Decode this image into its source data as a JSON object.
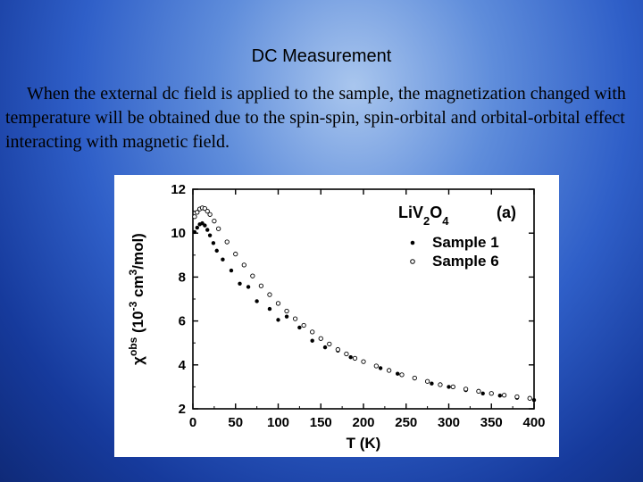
{
  "slide": {
    "title": "DC Measurement",
    "body": "When the external dc field is applied to the sample, the magnetization changed with temperature will be obtained due to the spin-spin, spin-orbital and orbital-orbital effect interacting with magnetic field."
  },
  "chart_data": {
    "type": "scatter",
    "panel_label": "(a)",
    "compound": {
      "base": "LiV",
      "sub1": "2",
      "mid": "O",
      "sub2": "4"
    },
    "xlabel": "T (K)",
    "ylabel": "χ^obs (10^-3 cm^3/mol)",
    "xlim": [
      0,
      400
    ],
    "ylim": [
      2,
      12
    ],
    "x_ticks": [
      "0",
      "50",
      "100",
      "150",
      "200",
      "250",
      "300",
      "350",
      "400"
    ],
    "y_ticks": [
      "2",
      "4",
      "6",
      "8",
      "10",
      "12"
    ],
    "legend_position": "top-right",
    "grid": false,
    "series": [
      {
        "name": "Sample 1",
        "marker": "filled-dot",
        "color": "#000000",
        "points": [
          [
            2,
            10.05
          ],
          [
            5,
            10.25
          ],
          [
            8,
            10.4
          ],
          [
            11,
            10.45
          ],
          [
            14,
            10.35
          ],
          [
            17,
            10.15
          ],
          [
            20,
            9.9
          ],
          [
            24,
            9.55
          ],
          [
            28,
            9.2
          ],
          [
            35,
            8.8
          ],
          [
            45,
            8.3
          ],
          [
            55,
            7.7
          ],
          [
            65,
            7.55
          ],
          [
            75,
            6.9
          ],
          [
            90,
            6.55
          ],
          [
            100,
            6.05
          ],
          [
            110,
            6.2
          ],
          [
            125,
            5.7
          ],
          [
            140,
            5.1
          ],
          [
            155,
            4.8
          ],
          [
            170,
            4.65
          ],
          [
            185,
            4.35
          ],
          [
            200,
            4.15
          ],
          [
            220,
            3.85
          ],
          [
            240,
            3.6
          ],
          [
            260,
            3.4
          ],
          [
            280,
            3.15
          ],
          [
            300,
            3.0
          ],
          [
            320,
            2.85
          ],
          [
            340,
            2.7
          ],
          [
            360,
            2.6
          ],
          [
            380,
            2.5
          ],
          [
            400,
            2.4
          ]
        ]
      },
      {
        "name": "Sample 6",
        "marker": "open-dot",
        "color": "#000000",
        "points": [
          [
            2,
            10.75
          ],
          [
            5,
            10.95
          ],
          [
            8,
            11.1
          ],
          [
            11,
            11.15
          ],
          [
            14,
            11.12
          ],
          [
            17,
            11.0
          ],
          [
            20,
            10.85
          ],
          [
            25,
            10.55
          ],
          [
            30,
            10.2
          ],
          [
            40,
            9.6
          ],
          [
            50,
            9.05
          ],
          [
            60,
            8.55
          ],
          [
            70,
            8.05
          ],
          [
            80,
            7.6
          ],
          [
            90,
            7.2
          ],
          [
            100,
            6.8
          ],
          [
            110,
            6.45
          ],
          [
            120,
            6.1
          ],
          [
            130,
            5.8
          ],
          [
            140,
            5.5
          ],
          [
            150,
            5.2
          ],
          [
            160,
            4.95
          ],
          [
            170,
            4.7
          ],
          [
            180,
            4.5
          ],
          [
            190,
            4.3
          ],
          [
            200,
            4.15
          ],
          [
            215,
            3.95
          ],
          [
            230,
            3.75
          ],
          [
            245,
            3.55
          ],
          [
            260,
            3.4
          ],
          [
            275,
            3.25
          ],
          [
            290,
            3.1
          ],
          [
            305,
            3.0
          ],
          [
            320,
            2.9
          ],
          [
            335,
            2.8
          ],
          [
            350,
            2.7
          ],
          [
            365,
            2.62
          ],
          [
            380,
            2.55
          ],
          [
            395,
            2.48
          ]
        ]
      }
    ]
  }
}
